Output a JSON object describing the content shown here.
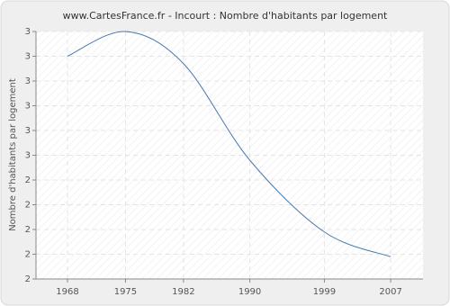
{
  "chart_data": {
    "type": "line",
    "title": "www.CartesFrance.fr - Incourt : Nombre d'habitants par logement",
    "y_label": "Nombre d'habitants par logement",
    "x": [
      1968,
      1975,
      1982,
      1990,
      1999,
      2007
    ],
    "series": [
      {
        "name": "Incourt",
        "color": "#4a7ab0",
        "values": [
          2.9,
          3.0,
          2.87,
          2.48,
          2.19,
          2.09
        ]
      }
    ],
    "xlim": [
      1964.2,
      2010.9
    ],
    "xticks": [
      1968,
      1975,
      1982,
      1990,
      1999,
      2007
    ],
    "ylim": [
      2.0,
      3.0
    ],
    "yticks": [
      {
        "value": 2.0,
        "label": "2"
      },
      {
        "value": 2.1,
        "label": "2"
      },
      {
        "value": 2.2,
        "label": "2"
      },
      {
        "value": 2.3,
        "label": "2"
      },
      {
        "value": 2.4,
        "label": "2"
      },
      {
        "value": 2.5,
        "label": "3"
      },
      {
        "value": 2.6,
        "label": "3"
      },
      {
        "value": 2.7,
        "label": "3"
      },
      {
        "value": 2.8,
        "label": "3"
      },
      {
        "value": 2.9,
        "label": "3"
      },
      {
        "value": 3.0,
        "label": "3"
      }
    ],
    "grid": true
  }
}
